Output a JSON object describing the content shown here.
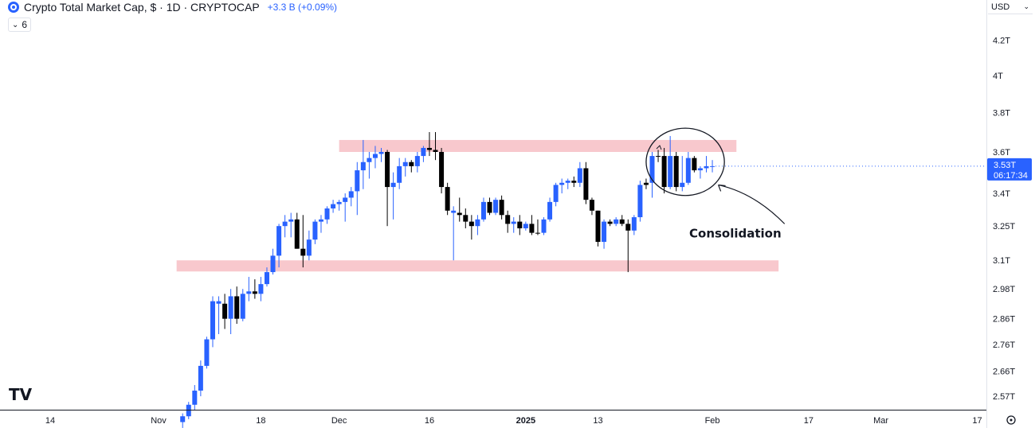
{
  "header": {
    "title": "Crypto Total Market Cap, $ · 1D · CRYPTOCAP",
    "change": "+3.3 B (+0.09%)",
    "indicator_count": "6",
    "currency": "USD"
  },
  "price_tag": {
    "price": "3.53T",
    "countdown": "06:17:34"
  },
  "watermark": "TV",
  "chart_data": {
    "type": "candlestick",
    "y_scale": "log",
    "ylim": [
      2.48,
      4.45
    ],
    "y_ticks": [
      {
        "value": 4.2,
        "label": "4.2T"
      },
      {
        "value": 4.0,
        "label": "4T"
      },
      {
        "value": 3.8,
        "label": "3.8T"
      },
      {
        "value": 3.6,
        "label": "3.6T"
      },
      {
        "value": 3.4,
        "label": "3.4T"
      },
      {
        "value": 3.25,
        "label": "3.25T"
      },
      {
        "value": 3.1,
        "label": "3.1T"
      },
      {
        "value": 2.98,
        "label": "2.98T"
      },
      {
        "value": 2.86,
        "label": "2.86T"
      },
      {
        "value": 2.76,
        "label": "2.76T"
      },
      {
        "value": 2.66,
        "label": "2.66T"
      },
      {
        "value": 2.57,
        "label": "2.57T"
      }
    ],
    "x_ticks": [
      {
        "date": "2024-10-14",
        "label": "14",
        "bold": false
      },
      {
        "date": "2024-11-01",
        "label": "Nov",
        "bold": false
      },
      {
        "date": "2024-11-18",
        "label": "18",
        "bold": false
      },
      {
        "date": "2024-12-01",
        "label": "Dec",
        "bold": false
      },
      {
        "date": "2024-12-16",
        "label": "16",
        "bold": false
      },
      {
        "date": "2025-01-01",
        "label": "2025",
        "bold": true
      },
      {
        "date": "2025-01-13",
        "label": "13",
        "bold": false
      },
      {
        "date": "2025-02-01",
        "label": "Feb",
        "bold": false
      },
      {
        "date": "2025-02-17",
        "label": "17",
        "bold": false
      },
      {
        "date": "2025-03-01",
        "label": "Mar",
        "bold": false
      },
      {
        "date": "2025-03-17",
        "label": "17",
        "bold": false
      }
    ],
    "zones": [
      {
        "date_from": "2024-12-01",
        "date_to": "2025-02-05",
        "low": 3.6,
        "high": 3.66,
        "color": "#f8c8cd"
      },
      {
        "date_from": "2024-11-04",
        "date_to": "2025-02-12",
        "low": 3.06,
        "high": 3.1,
        "color": "#f8c8cd"
      }
    ],
    "candles": [
      {
        "date": "2024-11-05",
        "o": 2.48,
        "h": 2.51,
        "l": 2.46,
        "c": 2.5,
        "color": "#2962ff"
      },
      {
        "date": "2024-11-06",
        "o": 2.5,
        "h": 2.55,
        "l": 2.49,
        "c": 2.54,
        "color": "#2962ff"
      },
      {
        "date": "2024-11-07",
        "o": 2.54,
        "h": 2.61,
        "l": 2.52,
        "c": 2.59,
        "color": "#2962ff"
      },
      {
        "date": "2024-11-08",
        "o": 2.59,
        "h": 2.7,
        "l": 2.57,
        "c": 2.68,
        "color": "#2962ff"
      },
      {
        "date": "2024-11-09",
        "o": 2.68,
        "h": 2.79,
        "l": 2.67,
        "c": 2.78,
        "color": "#2962ff"
      },
      {
        "date": "2024-11-10",
        "o": 2.78,
        "h": 2.95,
        "l": 2.75,
        "c": 2.93,
        "color": "#2962ff"
      },
      {
        "date": "2024-11-11",
        "o": 2.93,
        "h": 2.95,
        "l": 2.8,
        "c": 2.92,
        "color": "#2962ff"
      },
      {
        "date": "2024-11-12",
        "o": 2.92,
        "h": 2.96,
        "l": 2.82,
        "c": 2.86,
        "color": "#000000"
      },
      {
        "date": "2024-11-13",
        "o": 2.86,
        "h": 2.98,
        "l": 2.8,
        "c": 2.95,
        "color": "#2962ff"
      },
      {
        "date": "2024-11-14",
        "o": 2.95,
        "h": 2.99,
        "l": 2.84,
        "c": 2.86,
        "color": "#000000"
      },
      {
        "date": "2024-11-15",
        "o": 2.86,
        "h": 2.98,
        "l": 2.85,
        "c": 2.96,
        "color": "#2962ff"
      },
      {
        "date": "2024-11-16",
        "o": 2.96,
        "h": 3.03,
        "l": 2.93,
        "c": 2.97,
        "color": "#2962ff"
      },
      {
        "date": "2024-11-17",
        "o": 2.97,
        "h": 3.02,
        "l": 2.94,
        "c": 2.96,
        "color": "#000000"
      },
      {
        "date": "2024-11-18",
        "o": 2.96,
        "h": 3.03,
        "l": 2.93,
        "c": 3.0,
        "color": "#2962ff"
      },
      {
        "date": "2024-11-19",
        "o": 3.0,
        "h": 3.07,
        "l": 2.99,
        "c": 3.05,
        "color": "#2962ff"
      },
      {
        "date": "2024-11-20",
        "o": 3.05,
        "h": 3.15,
        "l": 3.04,
        "c": 3.12,
        "color": "#2962ff"
      },
      {
        "date": "2024-11-21",
        "o": 3.12,
        "h": 3.26,
        "l": 3.07,
        "c": 3.25,
        "color": "#2962ff"
      },
      {
        "date": "2024-11-22",
        "o": 3.25,
        "h": 3.3,
        "l": 3.2,
        "c": 3.27,
        "color": "#2962ff"
      },
      {
        "date": "2024-11-23",
        "o": 3.27,
        "h": 3.31,
        "l": 3.2,
        "c": 3.28,
        "color": "#2962ff"
      },
      {
        "date": "2024-11-24",
        "o": 3.28,
        "h": 3.31,
        "l": 3.15,
        "c": 3.15,
        "color": "#000000"
      },
      {
        "date": "2024-11-25",
        "o": 3.15,
        "h": 3.3,
        "l": 3.07,
        "c": 3.12,
        "color": "#000000"
      },
      {
        "date": "2024-11-26",
        "o": 3.12,
        "h": 3.23,
        "l": 3.1,
        "c": 3.19,
        "color": "#2962ff"
      },
      {
        "date": "2024-11-27",
        "o": 3.19,
        "h": 3.28,
        "l": 3.17,
        "c": 3.27,
        "color": "#2962ff"
      },
      {
        "date": "2024-11-28",
        "o": 3.27,
        "h": 3.3,
        "l": 3.22,
        "c": 3.28,
        "color": "#2962ff"
      },
      {
        "date": "2024-11-29",
        "o": 3.28,
        "h": 3.34,
        "l": 3.26,
        "c": 3.33,
        "color": "#2962ff"
      },
      {
        "date": "2024-11-30",
        "o": 3.33,
        "h": 3.37,
        "l": 3.31,
        "c": 3.35,
        "color": "#2962ff"
      },
      {
        "date": "2024-12-01",
        "o": 3.35,
        "h": 3.37,
        "l": 3.32,
        "c": 3.36,
        "color": "#2962ff"
      },
      {
        "date": "2024-12-02",
        "o": 3.36,
        "h": 3.4,
        "l": 3.27,
        "c": 3.38,
        "color": "#2962ff"
      },
      {
        "date": "2024-12-03",
        "o": 3.38,
        "h": 3.43,
        "l": 3.34,
        "c": 3.41,
        "color": "#2962ff"
      },
      {
        "date": "2024-12-04",
        "o": 3.41,
        "h": 3.55,
        "l": 3.3,
        "c": 3.51,
        "color": "#2962ff"
      },
      {
        "date": "2024-12-05",
        "o": 3.51,
        "h": 3.66,
        "l": 3.42,
        "c": 3.55,
        "color": "#2962ff"
      },
      {
        "date": "2024-12-06",
        "o": 3.55,
        "h": 3.6,
        "l": 3.47,
        "c": 3.57,
        "color": "#2962ff"
      },
      {
        "date": "2024-12-07",
        "o": 3.57,
        "h": 3.63,
        "l": 3.52,
        "c": 3.59,
        "color": "#2962ff"
      },
      {
        "date": "2024-12-08",
        "o": 3.59,
        "h": 3.62,
        "l": 3.55,
        "c": 3.6,
        "color": "#2962ff"
      },
      {
        "date": "2024-12-09",
        "o": 3.6,
        "h": 3.61,
        "l": 3.25,
        "c": 3.43,
        "color": "#000000"
      },
      {
        "date": "2024-12-10",
        "o": 3.43,
        "h": 3.5,
        "l": 3.28,
        "c": 3.45,
        "color": "#2962ff"
      },
      {
        "date": "2024-12-11",
        "o": 3.45,
        "h": 3.57,
        "l": 3.42,
        "c": 3.53,
        "color": "#2962ff"
      },
      {
        "date": "2024-12-12",
        "o": 3.53,
        "h": 3.57,
        "l": 3.48,
        "c": 3.55,
        "color": "#2962ff"
      },
      {
        "date": "2024-12-13",
        "o": 3.55,
        "h": 3.56,
        "l": 3.5,
        "c": 3.53,
        "color": "#000000"
      },
      {
        "date": "2024-12-14",
        "o": 3.53,
        "h": 3.6,
        "l": 3.5,
        "c": 3.58,
        "color": "#2962ff"
      },
      {
        "date": "2024-12-15",
        "o": 3.58,
        "h": 3.63,
        "l": 3.55,
        "c": 3.62,
        "color": "#2962ff"
      },
      {
        "date": "2024-12-16",
        "o": 3.62,
        "h": 3.7,
        "l": 3.58,
        "c": 3.61,
        "color": "#000000"
      },
      {
        "date": "2024-12-17",
        "o": 3.61,
        "h": 3.7,
        "l": 3.56,
        "c": 3.6,
        "color": "#000000"
      },
      {
        "date": "2024-12-18",
        "o": 3.6,
        "h": 3.62,
        "l": 3.4,
        "c": 3.43,
        "color": "#000000"
      },
      {
        "date": "2024-12-19",
        "o": 3.43,
        "h": 3.45,
        "l": 3.3,
        "c": 3.32,
        "color": "#000000"
      },
      {
        "date": "2024-12-20",
        "o": 3.32,
        "h": 3.34,
        "l": 3.1,
        "c": 3.31,
        "color": "#2962ff"
      },
      {
        "date": "2024-12-21",
        "o": 3.31,
        "h": 3.38,
        "l": 3.27,
        "c": 3.3,
        "color": "#000000"
      },
      {
        "date": "2024-12-22",
        "o": 3.3,
        "h": 3.33,
        "l": 3.24,
        "c": 3.27,
        "color": "#000000"
      },
      {
        "date": "2024-12-23",
        "o": 3.27,
        "h": 3.3,
        "l": 3.19,
        "c": 3.25,
        "color": "#000000"
      },
      {
        "date": "2024-12-24",
        "o": 3.25,
        "h": 3.3,
        "l": 3.21,
        "c": 3.28,
        "color": "#2962ff"
      },
      {
        "date": "2024-12-25",
        "o": 3.28,
        "h": 3.38,
        "l": 3.27,
        "c": 3.36,
        "color": "#2962ff"
      },
      {
        "date": "2024-12-26",
        "o": 3.36,
        "h": 3.38,
        "l": 3.3,
        "c": 3.31,
        "color": "#000000"
      },
      {
        "date": "2024-12-27",
        "o": 3.31,
        "h": 3.38,
        "l": 3.3,
        "c": 3.37,
        "color": "#2962ff"
      },
      {
        "date": "2024-12-28",
        "o": 3.37,
        "h": 3.39,
        "l": 3.28,
        "c": 3.3,
        "color": "#000000"
      },
      {
        "date": "2024-12-29",
        "o": 3.3,
        "h": 3.32,
        "l": 3.22,
        "c": 3.26,
        "color": "#000000"
      },
      {
        "date": "2024-12-30",
        "o": 3.26,
        "h": 3.29,
        "l": 3.22,
        "c": 3.27,
        "color": "#2962ff"
      },
      {
        "date": "2024-12-31",
        "o": 3.27,
        "h": 3.3,
        "l": 3.21,
        "c": 3.24,
        "color": "#000000"
      },
      {
        "date": "2025-01-01",
        "o": 3.24,
        "h": 3.27,
        "l": 3.23,
        "c": 3.26,
        "color": "#2962ff"
      },
      {
        "date": "2025-01-02",
        "o": 3.26,
        "h": 3.3,
        "l": 3.21,
        "c": 3.22,
        "color": "#000000"
      },
      {
        "date": "2025-01-03",
        "o": 3.22,
        "h": 3.28,
        "l": 3.21,
        "c": 3.22,
        "color": "#000000"
      },
      {
        "date": "2025-01-04",
        "o": 3.22,
        "h": 3.29,
        "l": 3.21,
        "c": 3.28,
        "color": "#2962ff"
      },
      {
        "date": "2025-01-05",
        "o": 3.28,
        "h": 3.38,
        "l": 3.27,
        "c": 3.36,
        "color": "#2962ff"
      },
      {
        "date": "2025-01-06",
        "o": 3.36,
        "h": 3.45,
        "l": 3.34,
        "c": 3.44,
        "color": "#2962ff"
      },
      {
        "date": "2025-01-07",
        "o": 3.44,
        "h": 3.47,
        "l": 3.4,
        "c": 3.45,
        "color": "#2962ff"
      },
      {
        "date": "2025-01-08",
        "o": 3.45,
        "h": 3.47,
        "l": 3.42,
        "c": 3.46,
        "color": "#2962ff"
      },
      {
        "date": "2025-01-09",
        "o": 3.46,
        "h": 3.48,
        "l": 3.43,
        "c": 3.45,
        "color": "#000000"
      },
      {
        "date": "2025-01-10",
        "o": 3.45,
        "h": 3.55,
        "l": 3.43,
        "c": 3.52,
        "color": "#2962ff"
      },
      {
        "date": "2025-01-11",
        "o": 3.52,
        "h": 3.55,
        "l": 3.35,
        "c": 3.37,
        "color": "#000000"
      },
      {
        "date": "2025-01-12",
        "o": 3.37,
        "h": 3.38,
        "l": 3.3,
        "c": 3.32,
        "color": "#000000"
      },
      {
        "date": "2025-01-13",
        "o": 3.32,
        "h": 3.32,
        "l": 3.16,
        "c": 3.18,
        "color": "#000000"
      },
      {
        "date": "2025-01-14",
        "o": 3.18,
        "h": 3.28,
        "l": 3.15,
        "c": 3.27,
        "color": "#2962ff"
      },
      {
        "date": "2025-01-15",
        "o": 3.27,
        "h": 3.28,
        "l": 3.25,
        "c": 3.26,
        "color": "#000000"
      },
      {
        "date": "2025-01-16",
        "o": 3.26,
        "h": 3.29,
        "l": 3.25,
        "c": 3.28,
        "color": "#2962ff"
      },
      {
        "date": "2025-01-17",
        "o": 3.28,
        "h": 3.3,
        "l": 3.25,
        "c": 3.26,
        "color": "#000000"
      },
      {
        "date": "2025-01-18",
        "o": 3.26,
        "h": 3.28,
        "l": 3.05,
        "c": 3.23,
        "color": "#000000"
      },
      {
        "date": "2025-01-19",
        "o": 3.23,
        "h": 3.3,
        "l": 3.21,
        "c": 3.29,
        "color": "#2962ff"
      },
      {
        "date": "2025-01-20",
        "o": 3.29,
        "h": 3.46,
        "l": 3.27,
        "c": 3.44,
        "color": "#2962ff"
      },
      {
        "date": "2025-01-21",
        "o": 3.44,
        "h": 3.47,
        "l": 3.42,
        "c": 3.45,
        "color": "#000000"
      },
      {
        "date": "2025-01-22",
        "o": 3.45,
        "h": 3.6,
        "l": 3.38,
        "c": 3.58,
        "color": "#2962ff"
      },
      {
        "date": "2025-01-23",
        "o": 3.58,
        "h": 3.61,
        "l": 3.55,
        "c": 3.58,
        "color": "#000000"
      },
      {
        "date": "2025-01-24",
        "o": 3.58,
        "h": 3.62,
        "l": 3.4,
        "c": 3.43,
        "color": "#000000"
      },
      {
        "date": "2025-01-25",
        "o": 3.43,
        "h": 3.68,
        "l": 3.42,
        "c": 3.58,
        "color": "#2962ff"
      },
      {
        "date": "2025-01-26",
        "o": 3.58,
        "h": 3.6,
        "l": 3.41,
        "c": 3.43,
        "color": "#000000"
      },
      {
        "date": "2025-01-27",
        "o": 3.43,
        "h": 3.58,
        "l": 3.41,
        "c": 3.45,
        "color": "#2962ff"
      },
      {
        "date": "2025-01-28",
        "o": 3.45,
        "h": 3.6,
        "l": 3.44,
        "c": 3.57,
        "color": "#2962ff"
      },
      {
        "date": "2025-01-29",
        "o": 3.57,
        "h": 3.58,
        "l": 3.5,
        "c": 3.51,
        "color": "#000000"
      },
      {
        "date": "2025-01-30",
        "o": 3.51,
        "h": 3.53,
        "l": 3.47,
        "c": 3.52,
        "color": "#2962ff"
      },
      {
        "date": "2025-01-31",
        "o": 3.52,
        "h": 3.58,
        "l": 3.5,
        "c": 3.53,
        "color": "#2962ff"
      },
      {
        "date": "2025-02-01",
        "o": 3.53,
        "h": 3.56,
        "l": 3.5,
        "c": 3.53,
        "color": "#2962ff"
      }
    ],
    "annotation": {
      "text": "Consolidation",
      "ellipse_date_from": "2025-01-21",
      "ellipse_date_to": "2025-02-03",
      "ellipse_low": 3.39,
      "ellipse_high": 3.72,
      "arrow_from_date": "2025-02-13",
      "arrow_from_value": 3.26,
      "arrow_to_date": "2025-02-02",
      "arrow_to_value": 3.44
    },
    "last_price": 3.53,
    "grid": false,
    "legend": "none"
  }
}
